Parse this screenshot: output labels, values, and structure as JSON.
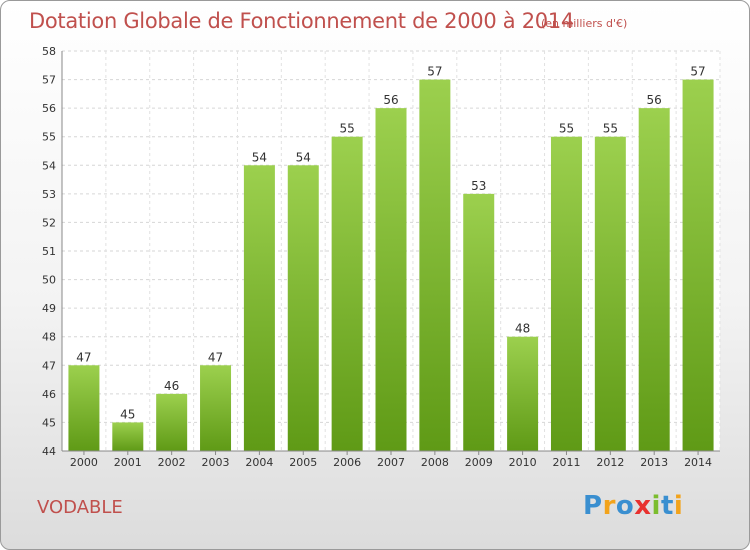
{
  "chart_data": {
    "type": "bar",
    "title": "Dotation Globale de Fonctionnement de 2000 à 2014",
    "unit": "(en milliers d'€)",
    "xlabel": "",
    "ylabel": "",
    "categories": [
      "2000",
      "2001",
      "2002",
      "2003",
      "2004",
      "2005",
      "2006",
      "2007",
      "2008",
      "2009",
      "2010",
      "2011",
      "2012",
      "2013",
      "2014"
    ],
    "values": [
      47,
      45,
      46,
      47,
      54,
      54,
      55,
      56,
      57,
      53,
      48,
      55,
      55,
      56,
      57
    ],
    "data_labels": [
      "47",
      "45",
      "46",
      "47",
      "54",
      "54",
      "55",
      "56",
      "57",
      "53",
      "48",
      "55",
      "55",
      "56",
      "57"
    ],
    "ylim": [
      44,
      58
    ],
    "yticks": [
      "44",
      "45",
      "46",
      "47",
      "48",
      "49",
      "50",
      "51",
      "52",
      "53",
      "54",
      "55",
      "56",
      "57",
      "58"
    ],
    "grid": true,
    "legend": "none",
    "bar_color_top": "#9cd04e",
    "bar_color_bottom": "#5f9a16"
  },
  "commune": "VODABLE",
  "logo": {
    "letters": [
      "P",
      "r",
      "o",
      "x",
      "i",
      "t",
      "i"
    ],
    "colors": [
      "#3a8fd0",
      "#f2a31b",
      "#3a8fd0",
      "#e8312f",
      "#7cbd2e",
      "#3a8fd0",
      "#f2a31b"
    ]
  }
}
